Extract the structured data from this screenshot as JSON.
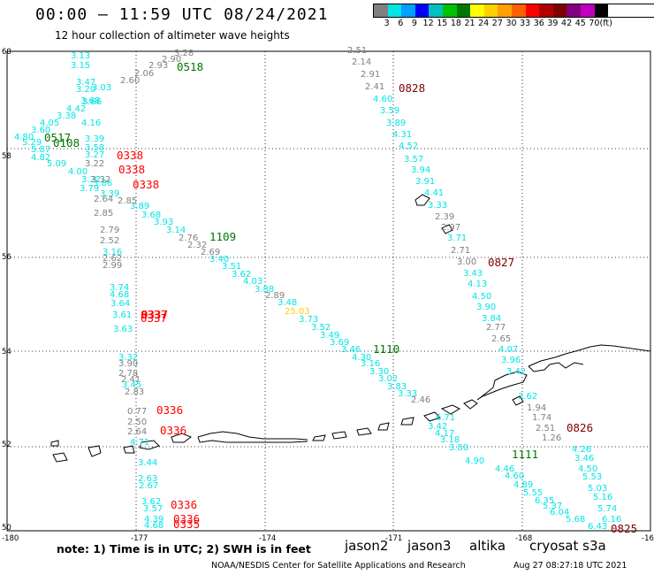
{
  "header": {
    "title": "00:00 – 11:59 UTC 08/24/2021",
    "subtitle": "12 hour collection of altimeter wave heights"
  },
  "legend": {
    "colors": [
      "#808080",
      "#00e5e5",
      "#00a0ff",
      "#0000ff",
      "#00bfbf",
      "#00c000",
      "#007800",
      "#ffff00",
      "#ffd000",
      "#ffa000",
      "#ff6000",
      "#ff0000",
      "#b00000",
      "#800000",
      "#800080",
      "#c000c0",
      "#000000"
    ],
    "ticks": [
      "3",
      "6",
      "9",
      "12",
      "15",
      "18",
      "21",
      "24",
      "27",
      "30",
      "33",
      "36",
      "39",
      "42",
      "45",
      "70",
      "(ft)"
    ]
  },
  "axes": {
    "lon_labels": [
      "-180",
      "-177",
      "-174",
      "-171",
      "-168",
      "-16"
    ],
    "lat_labels": [
      "60",
      "58",
      "56",
      "54",
      "52",
      "50"
    ]
  },
  "passes": [
    {
      "label": "0518",
      "color": "#007800"
    },
    {
      "label": "0828",
      "color": "#800000"
    },
    {
      "label": "0517",
      "color": "#007800"
    },
    {
      "label": "0108",
      "color": "#007800"
    },
    {
      "label": "0338",
      "color": "#ff0000"
    },
    {
      "label": "0338",
      "color": "#ff0000"
    },
    {
      "label": "0338",
      "color": "#ff0000"
    },
    {
      "label": "1109",
      "color": "#007800"
    },
    {
      "label": "0827",
      "color": "#800000"
    },
    {
      "label": "0337",
      "color": "#ff0000"
    },
    {
      "label": "0337",
      "color": "#ff0000"
    },
    {
      "label": "0337",
      "color": "#ff0000"
    },
    {
      "label": "1110",
      "color": "#007800"
    },
    {
      "label": "0336",
      "color": "#ff0000"
    },
    {
      "label": "0336",
      "color": "#ff0000"
    },
    {
      "label": "0826",
      "color": "#800000"
    },
    {
      "label": "1111",
      "color": "#007800"
    },
    {
      "label": "0336",
      "color": "#ff0000"
    },
    {
      "label": "0336",
      "color": "#ff0000"
    },
    {
      "label": "0335",
      "color": "#ff0000"
    },
    {
      "label": "0825",
      "color": "#800000"
    }
  ],
  "wave_heights": [
    {
      "v": "3.28",
      "c": "#808080"
    },
    {
      "v": "2.90",
      "c": "#808080"
    },
    {
      "v": "2.93",
      "c": "#808080"
    },
    {
      "v": "2.06",
      "c": "#808080"
    },
    {
      "v": "2.60",
      "c": "#808080"
    },
    {
      "v": "3.13",
      "c": "#00e5e5"
    },
    {
      "v": "3.15",
      "c": "#00e5e5"
    },
    {
      "v": "3.47",
      "c": "#00e5e5"
    },
    {
      "v": "3.20",
      "c": "#00e5e5"
    },
    {
      "v": "3.03",
      "c": "#00e5e5"
    },
    {
      "v": "3.68",
      "c": "#00e5e5"
    },
    {
      "v": "3.66",
      "c": "#00e5e5"
    },
    {
      "v": "4.42",
      "c": "#00e5e5"
    },
    {
      "v": "3.38",
      "c": "#00e5e5"
    },
    {
      "v": "4.05",
      "c": "#00e5e5"
    },
    {
      "v": "4.16",
      "c": "#00e5e5"
    },
    {
      "v": "3.60",
      "c": "#00e5e5"
    },
    {
      "v": "4.80",
      "c": "#00e5e5"
    },
    {
      "v": "5.29",
      "c": "#00e5e5"
    },
    {
      "v": "5.87",
      "c": "#00e5e5"
    },
    {
      "v": "4.82",
      "c": "#00e5e5"
    },
    {
      "v": "5.09",
      "c": "#00e5e5"
    },
    {
      "v": "3.39",
      "c": "#00e5e5"
    },
    {
      "v": "3.58",
      "c": "#00e5e5"
    },
    {
      "v": "3.27",
      "c": "#00e5e5"
    },
    {
      "v": "4.00",
      "c": "#00e5e5"
    },
    {
      "v": "3.22",
      "c": "#00e5e5"
    },
    {
      "v": "3.86",
      "c": "#00e5e5"
    },
    {
      "v": "3.79",
      "c": "#00e5e5"
    },
    {
      "v": "3.39",
      "c": "#00e5e5"
    },
    {
      "v": "3.89",
      "c": "#00e5e5"
    },
    {
      "v": "3.68",
      "c": "#00e5e5"
    },
    {
      "v": "3.93",
      "c": "#00e5e5"
    },
    {
      "v": "3.14",
      "c": "#00e5e5"
    },
    {
      "v": "3.32",
      "c": "#808080"
    },
    {
      "v": "3.22",
      "c": "#808080"
    },
    {
      "v": "2.64",
      "c": "#808080"
    },
    {
      "v": "2.85",
      "c": "#808080"
    },
    {
      "v": "2.85",
      "c": "#808080"
    },
    {
      "v": "2.79",
      "c": "#808080"
    },
    {
      "v": "2.52",
      "c": "#808080"
    },
    {
      "v": "2.76",
      "c": "#808080"
    },
    {
      "v": "2.32",
      "c": "#808080"
    },
    {
      "v": "2.69",
      "c": "#808080"
    },
    {
      "v": "3.16",
      "c": "#00e5e5"
    },
    {
      "v": "2.62",
      "c": "#808080"
    },
    {
      "v": "2.99",
      "c": "#808080"
    },
    {
      "v": "3.40",
      "c": "#00e5e5"
    },
    {
      "v": "3.51",
      "c": "#00e5e5"
    },
    {
      "v": "3.62",
      "c": "#00e5e5"
    },
    {
      "v": "4.03",
      "c": "#00e5e5"
    },
    {
      "v": "3.88",
      "c": "#00e5e5"
    },
    {
      "v": "2.89",
      "c": "#808080"
    },
    {
      "v": "3.48",
      "c": "#00e5e5"
    },
    {
      "v": "25.03",
      "c": "#ffd000"
    },
    {
      "v": "3.73",
      "c": "#00e5e5"
    },
    {
      "v": "3.52",
      "c": "#00e5e5"
    },
    {
      "v": "3.49",
      "c": "#00e5e5"
    },
    {
      "v": "3.69",
      "c": "#00e5e5"
    },
    {
      "v": "3.46",
      "c": "#00e5e5"
    },
    {
      "v": "4.30",
      "c": "#00e5e5"
    },
    {
      "v": "3.16",
      "c": "#00e5e5"
    },
    {
      "v": "3.30",
      "c": "#00e5e5"
    },
    {
      "v": "3.02",
      "c": "#00e5e5"
    },
    {
      "v": "3.83",
      "c": "#00e5e5"
    },
    {
      "v": "3.33",
      "c": "#00e5e5"
    },
    {
      "v": "2.46",
      "c": "#808080"
    },
    {
      "v": "6.71",
      "c": "#00e5e5"
    },
    {
      "v": "3.42",
      "c": "#00e5e5"
    },
    {
      "v": "4.17",
      "c": "#00e5e5"
    },
    {
      "v": "3.18",
      "c": "#00e5e5"
    },
    {
      "v": "3.80",
      "c": "#00e5e5"
    },
    {
      "v": "4.90",
      "c": "#00e5e5"
    },
    {
      "v": "4.46",
      "c": "#00e5e5"
    },
    {
      "v": "4.60",
      "c": "#00e5e5"
    },
    {
      "v": "4.89",
      "c": "#00e5e5"
    },
    {
      "v": "5.55",
      "c": "#00e5e5"
    },
    {
      "v": "6.35",
      "c": "#00e5e5"
    },
    {
      "v": "5.37",
      "c": "#00e5e5"
    },
    {
      "v": "6.04",
      "c": "#00e5e5"
    },
    {
      "v": "5.68",
      "c": "#00e5e5"
    },
    {
      "v": "6.43",
      "c": "#00e5e5"
    },
    {
      "v": "2.51",
      "c": "#808080"
    },
    {
      "v": "2.14",
      "c": "#808080"
    },
    {
      "v": "2.91",
      "c": "#808080"
    },
    {
      "v": "2.41",
      "c": "#808080"
    },
    {
      "v": "4.60",
      "c": "#00e5e5"
    },
    {
      "v": "3.59",
      "c": "#00e5e5"
    },
    {
      "v": "3.89",
      "c": "#00e5e5"
    },
    {
      "v": "4.31",
      "c": "#00e5e5"
    },
    {
      "v": "4.52",
      "c": "#00e5e5"
    },
    {
      "v": "3.57",
      "c": "#00e5e5"
    },
    {
      "v": "3.94",
      "c": "#00e5e5"
    },
    {
      "v": "3.91",
      "c": "#00e5e5"
    },
    {
      "v": "4.41",
      "c": "#00e5e5"
    },
    {
      "v": "3.33",
      "c": "#00e5e5"
    },
    {
      "v": "2.39",
      "c": "#808080"
    },
    {
      "v": "2.97",
      "c": "#808080"
    },
    {
      "v": "3.71",
      "c": "#00e5e5"
    },
    {
      "v": "2.71",
      "c": "#808080"
    },
    {
      "v": "3.00",
      "c": "#808080"
    },
    {
      "v": "3.43",
      "c": "#00e5e5"
    },
    {
      "v": "4.13",
      "c": "#00e5e5"
    },
    {
      "v": "4.50",
      "c": "#00e5e5"
    },
    {
      "v": "3.90",
      "c": "#00e5e5"
    },
    {
      "v": "3.84",
      "c": "#00e5e5"
    },
    {
      "v": "2.77",
      "c": "#808080"
    },
    {
      "v": "2.65",
      "c": "#808080"
    },
    {
      "v": "4.07",
      "c": "#00e5e5"
    },
    {
      "v": "3.96",
      "c": "#00e5e5"
    },
    {
      "v": "3.42",
      "c": "#00e5e5"
    },
    {
      "v": "3.62",
      "c": "#00e5e5"
    },
    {
      "v": "1.94",
      "c": "#808080"
    },
    {
      "v": "1.74",
      "c": "#808080"
    },
    {
      "v": "2.51",
      "c": "#808080"
    },
    {
      "v": "1.26",
      "c": "#808080"
    },
    {
      "v": "4.26",
      "c": "#00e5e5"
    },
    {
      "v": "3.46",
      "c": "#00e5e5"
    },
    {
      "v": "4.50",
      "c": "#00e5e5"
    },
    {
      "v": "5.53",
      "c": "#00e5e5"
    },
    {
      "v": "5.03",
      "c": "#00e5e5"
    },
    {
      "v": "5.16",
      "c": "#00e5e5"
    },
    {
      "v": "5.74",
      "c": "#00e5e5"
    },
    {
      "v": "6.16",
      "c": "#00e5e5"
    },
    {
      "v": "3.74",
      "c": "#00e5e5"
    },
    {
      "v": "4.68",
      "c": "#00e5e5"
    },
    {
      "v": "3.64",
      "c": "#00e5e5"
    },
    {
      "v": "3.61",
      "c": "#00e5e5"
    },
    {
      "v": "3.63",
      "c": "#00e5e5"
    },
    {
      "v": "3.32",
      "c": "#00e5e5"
    },
    {
      "v": "3.90",
      "c": "#808080"
    },
    {
      "v": "2.78",
      "c": "#808080"
    },
    {
      "v": "2.41",
      "c": "#808080"
    },
    {
      "v": "3.45",
      "c": "#00e5e5"
    },
    {
      "v": "2.83",
      "c": "#808080"
    },
    {
      "v": "0.77",
      "c": "#808080"
    },
    {
      "v": "2.50",
      "c": "#808080"
    },
    {
      "v": "2.64",
      "c": "#808080"
    },
    {
      "v": "4.71",
      "c": "#00e5e5"
    },
    {
      "v": "3.44",
      "c": "#00e5e5"
    },
    {
      "v": "2.63",
      "c": "#00e5e5"
    },
    {
      "v": "2.67",
      "c": "#00e5e5"
    },
    {
      "v": "3.62",
      "c": "#00e5e5"
    },
    {
      "v": "3.57",
      "c": "#00e5e5"
    },
    {
      "v": "4.39",
      "c": "#00e5e5"
    },
    {
      "v": "4.68",
      "c": "#00e5e5"
    }
  ],
  "footer": {
    "note": "note: 1) Time is in UTC; 2) SWH is in feet",
    "satellites": [
      {
        "name": "jason2",
        "color": "#0000ff"
      },
      {
        "name": "jason3",
        "color": "#007800"
      },
      {
        "name": "altika",
        "color": "#ffa000"
      },
      {
        "name": "cryosat s3a",
        "color": "#ff0000"
      }
    ],
    "credit": "NOAA/NESDIS Center for Satellite Applications and Research",
    "timestamp": "Aug 27 08:27:18 UTC 2021"
  }
}
